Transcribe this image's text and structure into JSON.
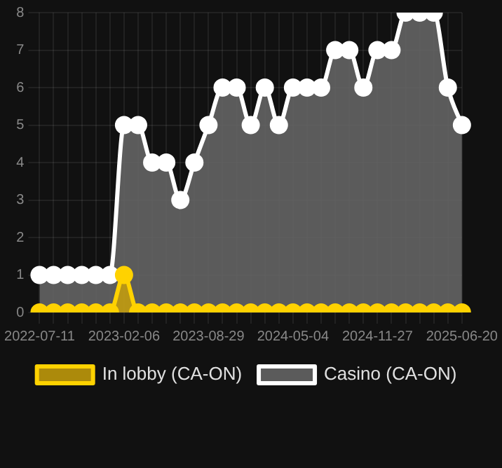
{
  "chart_data": {
    "type": "area",
    "categories": [
      "2022-07-11",
      null,
      null,
      null,
      null,
      null,
      "2023-02-06",
      null,
      null,
      null,
      null,
      null,
      "2023-08-29",
      null,
      null,
      null,
      null,
      null,
      "2024-05-04",
      null,
      null,
      null,
      null,
      null,
      "2024-11-27",
      null,
      null,
      null,
      null,
      null,
      "2025-06-20"
    ],
    "series": [
      {
        "name": "In lobby (CA-ON)",
        "color": "#ffd200",
        "values": [
          0,
          0,
          0,
          0,
          0,
          0,
          1,
          0,
          0,
          0,
          0,
          0,
          0,
          0,
          0,
          0,
          0,
          0,
          0,
          0,
          0,
          0,
          0,
          0,
          0,
          0,
          0,
          0,
          0,
          0,
          0
        ]
      },
      {
        "name": "Casino (CA-ON)",
        "color": "#ffffff",
        "values": [
          1,
          1,
          1,
          1,
          1,
          1,
          5,
          5,
          4,
          4,
          3,
          4,
          5,
          6,
          6,
          5,
          6,
          5,
          6,
          6,
          6,
          7,
          7,
          6,
          7,
          7,
          8,
          8,
          8,
          6,
          5
        ]
      }
    ],
    "ylim": [
      0,
      8
    ],
    "yticks": [
      0,
      1,
      2,
      3,
      4,
      5,
      6,
      7,
      8
    ],
    "grid": true,
    "legend": "bottom",
    "marker": "circle"
  }
}
